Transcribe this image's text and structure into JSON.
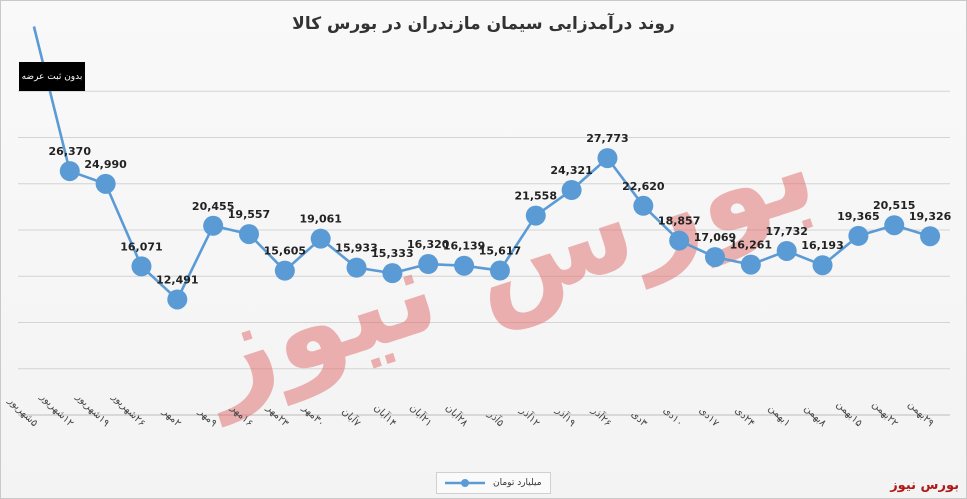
{
  "chart_data": {
    "type": "line",
    "title": "روند درآمدزایی سیمان مازندران در بورس کالا",
    "categories": [
      "۵شهریور",
      "۱۲شهریور",
      "۱۹شهریور",
      "۲۶شهریور",
      "۲مهر",
      "۹مهر",
      "۱۶مهر",
      "۲۳مهر",
      "۳۰مهر",
      "۷آبان",
      "۱۴آبان",
      "۲۱آبان",
      "۲۸آبان",
      "۵آذر",
      "۱۲آذر",
      "۱۹آذر",
      "۲۶آذر",
      "۳دی",
      "۱۰دی",
      "۱۷دی",
      "۲۴دی",
      "۱بهمن",
      "۸بهمن",
      "۱۵بهمن",
      "۲۲بهمن",
      "۲۹بهمن"
    ],
    "series": [
      {
        "name": "میلیارد تومان",
        "values": [
          null,
          26370,
          24990,
          16071,
          12491,
          20455,
          19557,
          15605,
          19061,
          15933,
          15333,
          16320,
          16139,
          15617,
          21558,
          24321,
          27773,
          22620,
          18857,
          17069,
          16261,
          17732,
          16193,
          19365,
          20515,
          19326
        ],
        "labels": [
          "",
          "26,370",
          "24,990",
          "16,071",
          "12,491",
          "20,455",
          "19,557",
          "15,605",
          "19,061",
          "15,933",
          "15,333",
          "16,320",
          "16,139",
          "15,617",
          "21,558",
          "24,321",
          "27,773",
          "22,620",
          "18,857",
          "17,069",
          "16,261",
          "17,732",
          "16,193",
          "19,365",
          "20,515",
          "19,326"
        ]
      }
    ],
    "first_point_offscale_value": 42000,
    "ylim": [
      0,
      40000
    ],
    "gridlines": [
      5000,
      10000,
      15000,
      20000,
      25000,
      30000,
      35000
    ],
    "grid": true,
    "color": "#5b9bd5",
    "legend_position": "bottom",
    "note": "بدون ثبت عرضه"
  },
  "brand": "بورس نیوز",
  "watermark": "بورس نیوز"
}
